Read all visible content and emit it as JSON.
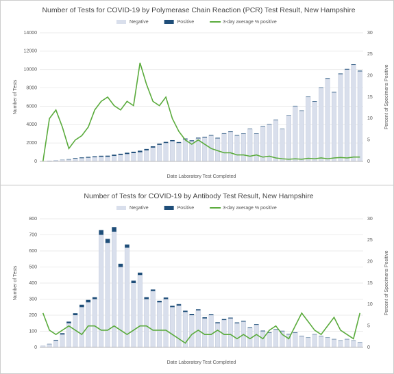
{
  "chart_data": [
    {
      "type": "bar",
      "stacked": true,
      "title": "Number of Tests for COVID-19 by Polymerase Chain Reaction (PCR) Test Result, New Hampshire",
      "x_label": "Date Laboratory Test Completed",
      "y_label": "Number of Tests",
      "y2_label": "Percent of Specimens Positive",
      "categories": [
        null,
        null,
        null,
        null,
        null,
        null,
        null,
        null,
        null,
        null,
        null,
        null,
        null,
        null,
        null,
        null,
        null,
        null,
        null,
        null,
        null,
        null,
        null,
        null,
        null,
        null,
        null,
        null,
        null,
        null,
        null,
        null,
        null,
        null,
        null,
        null,
        null,
        null,
        null,
        null,
        null,
        null,
        null,
        null,
        null,
        null,
        null,
        null,
        null,
        null
      ],
      "ylim": [
        0,
        14000
      ],
      "yticks": [
        0,
        2000,
        4000,
        6000,
        8000,
        10000,
        12000,
        14000
      ],
      "y2lim": [
        0,
        30
      ],
      "y2ticks": [
        0,
        5,
        10,
        15,
        20,
        25,
        30
      ],
      "series": [
        {
          "name": "Negative",
          "color": "#d9dfec",
          "values": [
            0,
            50,
            100,
            150,
            200,
            300,
            350,
            400,
            450,
            500,
            500,
            600,
            700,
            800,
            900,
            1000,
            1200,
            1500,
            1800,
            2000,
            2200,
            2000,
            2400,
            2200,
            2500,
            2600,
            2800,
            2500,
            3000,
            3200,
            2800,
            3000,
            3500,
            3000,
            3800,
            4000,
            4500,
            3500,
            5000,
            6000,
            5500,
            7000,
            6500,
            8000,
            9000,
            7500,
            9500,
            10000,
            10500,
            9800
          ]
        },
        {
          "name": "Positive",
          "color": "#1f4e79",
          "values": [
            0,
            5,
            10,
            20,
            40,
            60,
            80,
            90,
            100,
            110,
            120,
            130,
            130,
            140,
            150,
            160,
            150,
            140,
            130,
            120,
            110,
            100,
            90,
            90,
            80,
            80,
            70,
            70,
            60,
            60,
            60,
            50,
            50,
            50,
            50,
            50,
            50,
            40,
            40,
            40,
            40,
            50,
            50,
            50,
            60,
            60,
            70,
            70,
            70,
            80
          ]
        },
        {
          "name": "3-day average % positive",
          "color": "#5aab3c",
          "axis": "y2",
          "values": [
            0,
            10,
            12,
            8,
            3,
            5,
            6,
            8,
            12,
            14,
            15,
            13,
            12,
            14,
            13,
            23,
            18,
            14,
            13,
            15,
            10,
            7,
            5,
            4,
            5,
            4,
            3,
            2.5,
            2,
            2,
            1.5,
            1.5,
            1.2,
            1.5,
            1,
            1.2,
            0.8,
            0.6,
            0.5,
            0.6,
            0.5,
            0.7,
            0.6,
            0.8,
            0.6,
            0.8,
            0.9,
            0.8,
            1,
            1
          ]
        }
      ]
    },
    {
      "type": "bar",
      "stacked": true,
      "title": "Number of Tests for COVID-19 by Antibody Test Result, New Hampshire",
      "x_label": "Date Laboratory Test Completed",
      "y_label": "Number of Tests",
      "y2_label": "Percent of Specimens Positive",
      "categories": [
        null,
        null,
        null,
        null,
        null,
        null,
        null,
        null,
        null,
        null,
        null,
        null,
        null,
        null,
        null,
        null,
        null,
        null,
        null,
        null,
        null,
        null,
        null,
        null,
        null,
        null,
        null,
        null,
        null,
        null,
        null,
        null,
        null,
        null,
        null,
        null,
        null,
        null,
        null,
        null,
        null,
        null,
        null,
        null,
        null,
        null,
        null,
        null,
        null,
        null
      ],
      "ylim": [
        0,
        800
      ],
      "yticks": [
        0,
        100,
        200,
        300,
        400,
        500,
        600,
        700,
        800
      ],
      "y2lim": [
        0,
        30
      ],
      "y2ticks": [
        0,
        5,
        10,
        15,
        20,
        25,
        30
      ],
      "series": [
        {
          "name": "Negative",
          "color": "#d9dfec",
          "values": [
            10,
            20,
            40,
            80,
            150,
            200,
            250,
            280,
            300,
            700,
            650,
            720,
            500,
            620,
            400,
            450,
            300,
            350,
            280,
            300,
            250,
            260,
            220,
            200,
            230,
            180,
            200,
            150,
            170,
            180,
            150,
            160,
            120,
            140,
            100,
            90,
            110,
            100,
            80,
            90,
            70,
            60,
            80,
            70,
            60,
            50,
            40,
            50,
            40,
            30
          ]
        },
        {
          "name": "Positive",
          "color": "#1f4e79",
          "values": [
            0,
            2,
            5,
            8,
            10,
            12,
            15,
            15,
            12,
            30,
            25,
            28,
            20,
            20,
            15,
            15,
            12,
            10,
            10,
            10,
            9,
            9,
            8,
            8,
            7,
            7,
            6,
            6,
            6,
            5,
            5,
            5,
            4,
            4,
            4,
            3,
            3,
            3,
            3,
            3,
            2,
            2,
            2,
            2,
            2,
            2,
            2,
            2,
            2,
            2
          ]
        },
        {
          "name": "3-day average % positive",
          "color": "#5aab3c",
          "axis": "y2",
          "values": [
            8,
            4,
            3,
            4,
            5,
            4,
            3,
            5,
            5,
            4,
            4,
            5,
            4,
            3,
            4,
            5,
            5,
            4,
            4,
            4,
            3,
            2,
            1,
            3,
            4,
            3,
            3,
            4,
            3,
            3,
            2,
            3,
            2,
            3,
            2,
            4,
            5,
            3,
            2,
            5,
            8,
            6,
            4,
            3,
            5,
            7,
            4,
            3,
            2,
            8
          ]
        }
      ]
    }
  ]
}
